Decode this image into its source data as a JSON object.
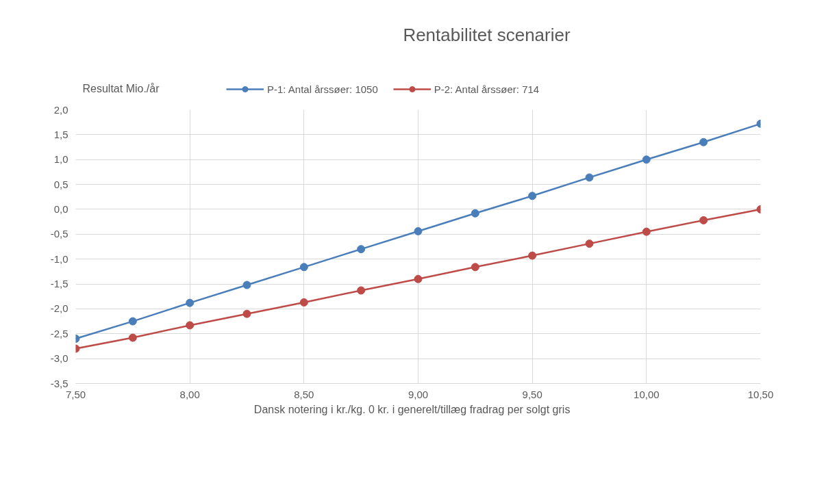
{
  "chart_data": {
    "type": "line",
    "title": "Rentabilitet scenarier",
    "xlabel": "Dansk notering i kr./kg.     0 kr. i generelt/tillæg fradrag per solgt gris",
    "annotations": [
      "Resultat Mio./år"
    ],
    "x": [
      7.5,
      7.75,
      8.0,
      8.25,
      8.5,
      8.75,
      9.0,
      9.25,
      9.5,
      9.75,
      10.0,
      10.25,
      10.5
    ],
    "series": [
      {
        "name": "P-1: Antal årssøer: 1050",
        "color": "#4a7ebb",
        "values": [
          -2.6,
          -2.25,
          -1.88,
          -1.52,
          -1.16,
          -0.8,
          -0.44,
          -0.08,
          0.27,
          0.64,
          1.0,
          1.35,
          1.72
        ]
      },
      {
        "name": "P-2: Antal årssøer: 714",
        "color": "#be4b48",
        "values": [
          -2.8,
          -2.58,
          -2.33,
          -2.1,
          -1.87,
          -1.63,
          -1.4,
          -1.16,
          -0.93,
          -0.69,
          -0.45,
          -0.22,
          0.0
        ]
      }
    ],
    "xlim": [
      7.5,
      10.5
    ],
    "xticks": [
      {
        "value": 7.5,
        "label": "7,50"
      },
      {
        "value": 8.0,
        "label": "8,00"
      },
      {
        "value": 8.5,
        "label": "8,50"
      },
      {
        "value": 9.0,
        "label": "9,00"
      },
      {
        "value": 9.5,
        "label": "9,50"
      },
      {
        "value": 10.0,
        "label": "10,00"
      },
      {
        "value": 10.5,
        "label": "10,50"
      }
    ],
    "ylim": [
      -3.5,
      2.0
    ],
    "yticks": [
      {
        "value": -3.5,
        "label": "-3,5"
      },
      {
        "value": -3.0,
        "label": "-3,0"
      },
      {
        "value": -2.5,
        "label": "-2,5"
      },
      {
        "value": -2.0,
        "label": "-2,0"
      },
      {
        "value": -1.5,
        "label": "-1,5"
      },
      {
        "value": -1.0,
        "label": "-1,0"
      },
      {
        "value": -0.5,
        "label": "-0,5"
      },
      {
        "value": 0.0,
        "label": "0,0"
      },
      {
        "value": 0.5,
        "label": "0,5"
      },
      {
        "value": 1.0,
        "label": "1,0"
      },
      {
        "value": 1.5,
        "label": "1,5"
      },
      {
        "value": 2.0,
        "label": "2,0"
      }
    ],
    "grid": true,
    "legend": "top",
    "marker": "circle",
    "line_style": "solid"
  }
}
